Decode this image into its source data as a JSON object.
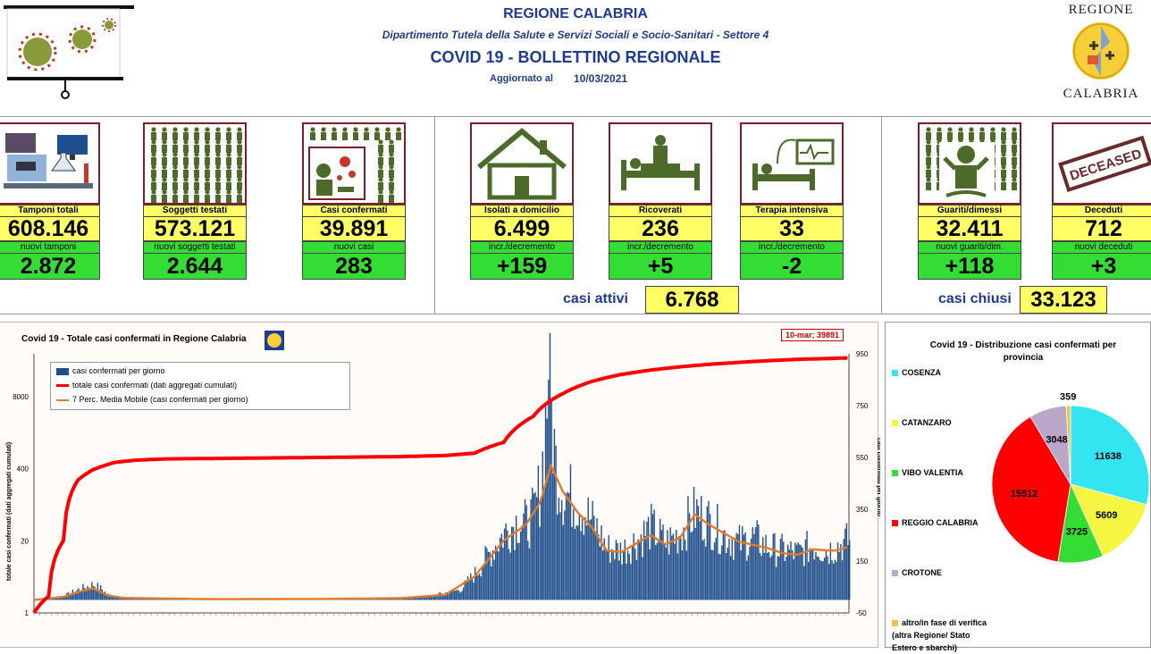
{
  "header": {
    "region": "REGIONE CALABRIA",
    "department": "Dipartimento Tutela della Salute e Servizi Sociali e Socio-Sanitari - Settore 4",
    "title": "COVID 19 - BOLLETTINO REGIONALE",
    "updated_label": "Aggiornato al",
    "updated_date": "10/03/2021",
    "logo_top": "REGIONE",
    "logo_bottom": "CALABRIA"
  },
  "tiles": [
    {
      "label": "Tamponi totali",
      "value": "608.146",
      "sub_label": "nuovi tamponi",
      "sub_value": "2.872",
      "icon": "lab-icon"
    },
    {
      "label": "Soggetti testati",
      "value": "573.121",
      "sub_label": "nuovi soggetti testati",
      "sub_value": "2.644",
      "icon": "people-grid-icon"
    },
    {
      "label": "Casi confermati",
      "value": "39.891",
      "sub_label": "nuovi casi",
      "sub_value": "283",
      "icon": "virus-person-icon"
    },
    {
      "label": "Isolati a domicilio",
      "value": "6.499",
      "sub_label": "incr./decremento",
      "sub_value": "+159",
      "icon": "house-icon"
    },
    {
      "label": "Ricoverati",
      "value": "236",
      "sub_label": "incr./decremento",
      "sub_value": "+5",
      "icon": "hospital-bed-icon"
    },
    {
      "label": "Terapia intensiva",
      "value": "33",
      "sub_label": "incr./decremento",
      "sub_value": "-2",
      "icon": "icu-icon"
    },
    {
      "label": "Guariti/dimessi",
      "value": "32.411",
      "sub_label": "nuovi guariti/dim.",
      "sub_value": "+118",
      "icon": "recovered-icon"
    },
    {
      "label": "Deceduti",
      "value": "712",
      "sub_label": "nuovi deceduti",
      "sub_value": "+3",
      "icon": "deceased-stamp-icon"
    }
  ],
  "deceased_stamp": "DECEASED",
  "casi_attivi": {
    "label": "casi attivi",
    "value": "6.768"
  },
  "casi_chiusi": {
    "label": "casi chiusi",
    "value": "33.123"
  },
  "colors": {
    "yellow": "#ffff66",
    "green": "#33dd33",
    "maroon": "#7b1f2a",
    "navy": "#1f3a93",
    "bars": "#1f4e8c",
    "cumulative": "#ff0000",
    "moving_avg": "#e07b2a"
  },
  "chart_data": [
    {
      "type": "bar+line",
      "title": "Covid 19 - Totale casi confermati in Regione Calabria",
      "ylabel": "totale casi confermati (dati aggregati cumulati)",
      "y2label": "casi confermati per giorno",
      "left_ticks": [
        "8000",
        "400",
        "20",
        "1"
      ],
      "right_ticks": [
        "950",
        "750",
        "550",
        "350",
        "150",
        "-50"
      ],
      "right_ylim": [
        -50,
        950
      ],
      "annotation": "10-mar; 39891",
      "legend": [
        "casi confermati per giorno",
        "totale casi confermati (dati aggregati cumulati)",
        "7 Perc. Media Mobile (casi confermati per giorno)"
      ],
      "cumulative_curve": [
        [
          0,
          1
        ],
        [
          10,
          2
        ],
        [
          20,
          20
        ],
        [
          30,
          250
        ],
        [
          40,
          380
        ],
        [
          55,
          520
        ],
        [
          70,
          570
        ],
        [
          90,
          600
        ],
        [
          120,
          610
        ],
        [
          150,
          620
        ],
        [
          200,
          640
        ],
        [
          250,
          660
        ],
        [
          280,
          690
        ],
        [
          300,
          760
        ],
        [
          320,
          1200
        ],
        [
          340,
          3500
        ],
        [
          360,
          9000
        ],
        [
          380,
          15000
        ],
        [
          400,
          20000
        ],
        [
          420,
          24000
        ],
        [
          440,
          27500
        ],
        [
          460,
          30500
        ],
        [
          480,
          33000
        ],
        [
          500,
          35500
        ],
        [
          520,
          37500
        ],
        [
          540,
          38800
        ],
        [
          555,
          39891
        ]
      ],
      "daily_profile": [
        [
          0,
          0
        ],
        [
          20,
          15
        ],
        [
          30,
          40
        ],
        [
          40,
          60
        ],
        [
          45,
          45
        ],
        [
          50,
          20
        ],
        [
          60,
          10
        ],
        [
          80,
          5
        ],
        [
          120,
          3
        ],
        [
          180,
          4
        ],
        [
          220,
          5
        ],
        [
          250,
          8
        ],
        [
          270,
          15
        ],
        [
          290,
          40
        ],
        [
          300,
          100
        ],
        [
          310,
          180
        ],
        [
          320,
          260
        ],
        [
          330,
          310
        ],
        [
          335,
          290
        ],
        [
          340,
          330
        ],
        [
          345,
          450
        ],
        [
          350,
          850
        ],
        [
          355,
          520
        ],
        [
          360,
          420
        ],
        [
          370,
          380
        ],
        [
          380,
          300
        ],
        [
          390,
          200
        ],
        [
          400,
          190
        ],
        [
          410,
          230
        ],
        [
          420,
          280
        ],
        [
          430,
          220
        ],
        [
          440,
          260
        ],
        [
          450,
          340
        ],
        [
          460,
          300
        ],
        [
          470,
          250
        ],
        [
          480,
          220
        ],
        [
          490,
          240
        ],
        [
          500,
          200
        ],
        [
          510,
          190
        ],
        [
          520,
          180
        ],
        [
          530,
          210
        ],
        [
          540,
          190
        ],
        [
          555,
          230
        ]
      ],
      "moving_avg_profile": [
        [
          0,
          0
        ],
        [
          20,
          12
        ],
        [
          30,
          30
        ],
        [
          40,
          45
        ],
        [
          50,
          18
        ],
        [
          60,
          8
        ],
        [
          120,
          3
        ],
        [
          200,
          4
        ],
        [
          250,
          7
        ],
        [
          280,
          20
        ],
        [
          300,
          90
        ],
        [
          320,
          230
        ],
        [
          335,
          290
        ],
        [
          345,
          380
        ],
        [
          352,
          520
        ],
        [
          360,
          420
        ],
        [
          370,
          340
        ],
        [
          380,
          280
        ],
        [
          390,
          190
        ],
        [
          400,
          185
        ],
        [
          420,
          250
        ],
        [
          430,
          215
        ],
        [
          440,
          240
        ],
        [
          450,
          330
        ],
        [
          460,
          290
        ],
        [
          480,
          225
        ],
        [
          500,
          200
        ],
        [
          510,
          180
        ],
        [
          520,
          175
        ],
        [
          530,
          195
        ],
        [
          545,
          190
        ],
        [
          555,
          205
        ]
      ]
    },
    {
      "type": "pie",
      "title": "Covid 19 - Distribuzione casi confermati per provincia",
      "slices": [
        {
          "name": "COSENZA",
          "value": 11638,
          "color": "#33e5f0"
        },
        {
          "name": "CATANZARO",
          "value": 5609,
          "color": "#f5f542"
        },
        {
          "name": "VIBO VALENTIA",
          "value": 3725,
          "color": "#33dd33"
        },
        {
          "name": "REGGIO CALABRIA",
          "value": 15512,
          "color": "#ff0000"
        },
        {
          "name": "CROTONE",
          "value": 3048,
          "color": "#b9a6c9"
        },
        {
          "name": "altro/in fase di verifica (altra Regione/ Stato Estero e sbarchi)",
          "value": 359,
          "color": "#f2c14e"
        }
      ],
      "labels": [
        "11638",
        "5609",
        "3725",
        "15512",
        "3048",
        "359"
      ]
    }
  ]
}
